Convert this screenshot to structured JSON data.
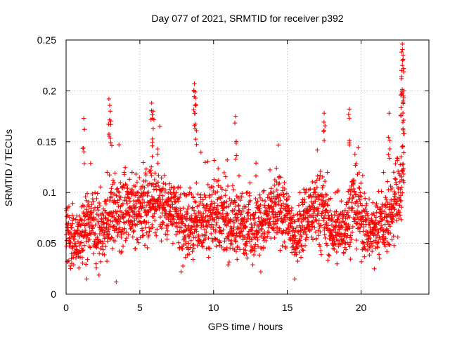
{
  "chart_data": {
    "type": "scatter",
    "title": "Day 077 of 2021, SRMTID for receiver p392",
    "xlabel": "GPS time / hours",
    "ylabel": "SRMTID / TECUs",
    "xlim": [
      0,
      24.6
    ],
    "ylim": [
      0,
      0.25
    ],
    "xticks": [
      0,
      5,
      10,
      15,
      20
    ],
    "xtick_labels": [
      "0",
      "5",
      "10",
      "15",
      "20"
    ],
    "yticks": [
      0,
      0.05,
      0.1,
      0.15,
      0.2,
      0.25
    ],
    "ytick_labels": [
      "0",
      "0.05",
      "0.1",
      "0.15",
      "0.2",
      "0.25"
    ],
    "grid": true,
    "marker": "+",
    "series": [
      {
        "name": "SRMTID",
        "color": "#ff0000",
        "profile": {
          "hours": [
            0,
            0.5,
            1.0,
            1.5,
            2.0,
            2.5,
            3.0,
            3.5,
            4.0,
            4.5,
            5.0,
            5.5,
            6.0,
            6.5,
            7.0,
            7.5,
            8.0,
            8.5,
            9.0,
            9.5,
            10.0,
            10.5,
            11.0,
            11.5,
            12.0,
            12.5,
            13.0,
            13.5,
            14.0,
            14.5,
            15.0,
            15.5,
            16.0,
            16.5,
            17.0,
            17.5,
            18.0,
            18.5,
            19.0,
            19.5,
            20.0,
            20.5,
            21.0,
            21.5,
            22.0,
            22.5,
            22.9
          ],
          "typical_srmtid": [
            0.065,
            0.05,
            0.06,
            0.07,
            0.06,
            0.065,
            0.08,
            0.075,
            0.08,
            0.075,
            0.085,
            0.09,
            0.095,
            0.09,
            0.085,
            0.075,
            0.06,
            0.065,
            0.07,
            0.075,
            0.08,
            0.075,
            0.07,
            0.07,
            0.07,
            0.065,
            0.07,
            0.07,
            0.08,
            0.085,
            0.075,
            0.05,
            0.07,
            0.08,
            0.085,
            0.08,
            0.06,
            0.06,
            0.07,
            0.09,
            0.075,
            0.06,
            0.065,
            0.07,
            0.075,
            0.1,
            0.12
          ],
          "spread": [
            0.025,
            0.025,
            0.03,
            0.03,
            0.03,
            0.03,
            0.035,
            0.03,
            0.03,
            0.03,
            0.03,
            0.035,
            0.035,
            0.03,
            0.03,
            0.03,
            0.025,
            0.03,
            0.03,
            0.03,
            0.03,
            0.03,
            0.03,
            0.03,
            0.03,
            0.03,
            0.03,
            0.03,
            0.03,
            0.03,
            0.03,
            0.02,
            0.03,
            0.03,
            0.035,
            0.03,
            0.025,
            0.025,
            0.03,
            0.035,
            0.03,
            0.025,
            0.025,
            0.03,
            0.03,
            0.035,
            0.04
          ]
        },
        "peaks": [
          {
            "t": 1.2,
            "v": 0.173
          },
          {
            "t": 2.9,
            "v": 0.192
          },
          {
            "t": 3.0,
            "v": 0.18
          },
          {
            "t": 5.8,
            "v": 0.188
          },
          {
            "t": 5.9,
            "v": 0.18
          },
          {
            "t": 8.7,
            "v": 0.207
          },
          {
            "t": 8.75,
            "v": 0.199
          },
          {
            "t": 8.8,
            "v": 0.186
          },
          {
            "t": 11.5,
            "v": 0.175
          },
          {
            "t": 17.5,
            "v": 0.178
          },
          {
            "t": 19.2,
            "v": 0.182
          },
          {
            "t": 21.9,
            "v": 0.178
          },
          {
            "t": 22.8,
            "v": 0.246
          },
          {
            "t": 22.85,
            "v": 0.235
          },
          {
            "t": 22.8,
            "v": 0.225
          },
          {
            "t": 22.75,
            "v": 0.22
          },
          {
            "t": 22.9,
            "v": 0.2
          },
          {
            "t": 22.85,
            "v": 0.19
          }
        ],
        "lows": [
          {
            "t": 3.4,
            "v": 0.012
          },
          {
            "t": 15.5,
            "v": 0.015
          },
          {
            "t": 1.4,
            "v": 0.015
          },
          {
            "t": 7.8,
            "v": 0.022
          },
          {
            "t": 13.2,
            "v": 0.022
          },
          {
            "t": 20.9,
            "v": 0.025
          }
        ]
      }
    ]
  }
}
